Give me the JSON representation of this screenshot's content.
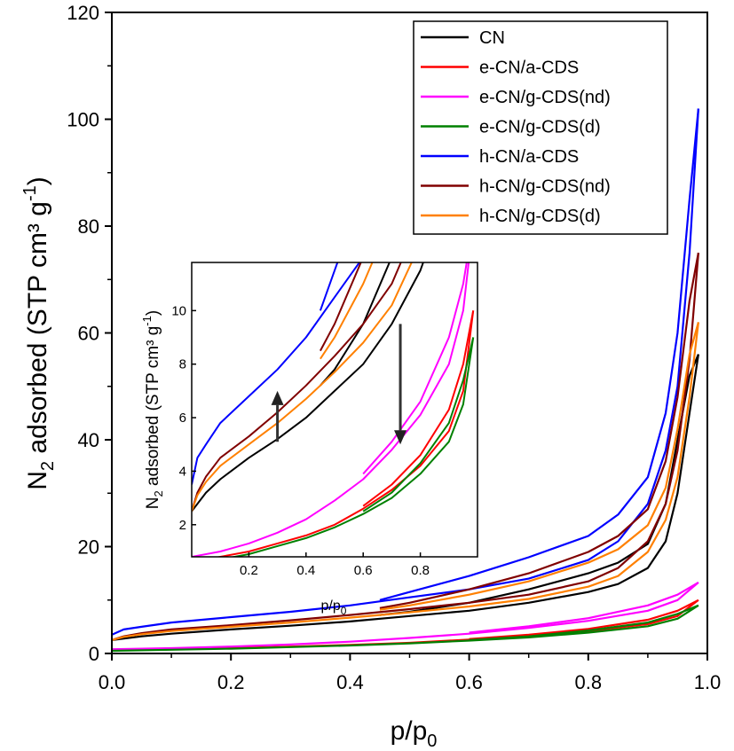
{
  "chart_data": {
    "type": "line",
    "x_title": {
      "base": "p/p",
      "sub": "0"
    },
    "y_title": {
      "prefix": "N",
      "sub": "2",
      "middle": " adsorbed (STP cm³ g",
      "sup": "-1",
      "suffix": ")"
    },
    "xlim": [
      0.0,
      1.0
    ],
    "ylim": [
      0,
      120
    ],
    "x_ticks": [
      "0.0",
      "0.2",
      "0.4",
      "0.6",
      "0.8",
      "1.0"
    ],
    "y_ticks": [
      "0",
      "20",
      "40",
      "60",
      "80",
      "100",
      "120"
    ],
    "legend_position": "top-right",
    "grid": false,
    "series": [
      {
        "name": "CN",
        "color": "#000000",
        "adsorption": [
          [
            0,
            2.5
          ],
          [
            0.05,
            3.2
          ],
          [
            0.1,
            3.7
          ],
          [
            0.2,
            4.5
          ],
          [
            0.3,
            5.2
          ],
          [
            0.4,
            6.0
          ],
          [
            0.5,
            7.0
          ],
          [
            0.6,
            8.0
          ],
          [
            0.7,
            9.5
          ],
          [
            0.8,
            11.5
          ],
          [
            0.85,
            13.0
          ],
          [
            0.9,
            16.0
          ],
          [
            0.93,
            21.0
          ],
          [
            0.95,
            30.0
          ],
          [
            0.97,
            45.0
          ],
          [
            0.985,
            56.0
          ]
        ],
        "desorption": [
          [
            0.985,
            56.0
          ],
          [
            0.97,
            52.0
          ],
          [
            0.95,
            40.0
          ],
          [
            0.93,
            28.0
          ],
          [
            0.9,
            20.5
          ],
          [
            0.85,
            17.0
          ],
          [
            0.8,
            15.0
          ],
          [
            0.7,
            12.0
          ],
          [
            0.6,
            9.5
          ],
          [
            0.5,
            7.8
          ],
          [
            0.45,
            7.2
          ]
        ]
      },
      {
        "name": "e-CN/a-CDS",
        "color": "#ff0000",
        "adsorption": [
          [
            0,
            0.6
          ],
          [
            0.1,
            0.8
          ],
          [
            0.2,
            1.0
          ],
          [
            0.3,
            1.3
          ],
          [
            0.4,
            1.6
          ],
          [
            0.5,
            2.0
          ],
          [
            0.6,
            2.6
          ],
          [
            0.7,
            3.3
          ],
          [
            0.8,
            4.2
          ],
          [
            0.9,
            5.5
          ],
          [
            0.95,
            7.0
          ],
          [
            0.985,
            10.0
          ]
        ],
        "desorption": [
          [
            0.985,
            10.0
          ],
          [
            0.95,
            8.0
          ],
          [
            0.9,
            6.3
          ],
          [
            0.8,
            4.6
          ],
          [
            0.7,
            3.5
          ],
          [
            0.6,
            2.7
          ]
        ]
      },
      {
        "name": "e-CN/g-CDS(nd)",
        "color": "#ff00ff",
        "adsorption": [
          [
            0,
            0.8
          ],
          [
            0.1,
            1.0
          ],
          [
            0.2,
            1.3
          ],
          [
            0.3,
            1.7
          ],
          [
            0.4,
            2.2
          ],
          [
            0.5,
            2.9
          ],
          [
            0.6,
            3.7
          ],
          [
            0.7,
            4.8
          ],
          [
            0.8,
            6.1
          ],
          [
            0.9,
            8.0
          ],
          [
            0.95,
            10.0
          ],
          [
            0.985,
            13.3
          ]
        ],
        "desorption": [
          [
            0.985,
            13.3
          ],
          [
            0.95,
            11.0
          ],
          [
            0.9,
            9.0
          ],
          [
            0.8,
            6.6
          ],
          [
            0.7,
            5.1
          ],
          [
            0.6,
            3.9
          ]
        ]
      },
      {
        "name": "e-CN/g-CDS(d)",
        "color": "#008000",
        "adsorption": [
          [
            0,
            0.5
          ],
          [
            0.1,
            0.7
          ],
          [
            0.2,
            0.9
          ],
          [
            0.3,
            1.2
          ],
          [
            0.4,
            1.5
          ],
          [
            0.5,
            1.9
          ],
          [
            0.6,
            2.4
          ],
          [
            0.7,
            3.0
          ],
          [
            0.8,
            3.9
          ],
          [
            0.9,
            5.1
          ],
          [
            0.95,
            6.5
          ],
          [
            0.985,
            9.0
          ]
        ],
        "desorption": [
          [
            0.985,
            9.0
          ],
          [
            0.95,
            7.4
          ],
          [
            0.9,
            5.8
          ],
          [
            0.8,
            4.3
          ],
          [
            0.7,
            3.2
          ],
          [
            0.6,
            2.5
          ]
        ]
      },
      {
        "name": "h-CN/a-CDS",
        "color": "#0000ff",
        "adsorption": [
          [
            0,
            3.5
          ],
          [
            0.02,
            4.5
          ],
          [
            0.05,
            5.0
          ],
          [
            0.1,
            5.8
          ],
          [
            0.2,
            6.8
          ],
          [
            0.3,
            7.8
          ],
          [
            0.4,
            9.0
          ],
          [
            0.5,
            10.5
          ],
          [
            0.6,
            12.0
          ],
          [
            0.7,
            14.0
          ],
          [
            0.8,
            17.5
          ],
          [
            0.85,
            21.0
          ],
          [
            0.9,
            28.0
          ],
          [
            0.93,
            38.0
          ],
          [
            0.95,
            50.0
          ],
          [
            0.97,
            75.0
          ],
          [
            0.985,
            102.0
          ]
        ],
        "desorption": [
          [
            0.985,
            102.0
          ],
          [
            0.97,
            85.0
          ],
          [
            0.95,
            60.0
          ],
          [
            0.93,
            45.0
          ],
          [
            0.9,
            33.0
          ],
          [
            0.85,
            26.0
          ],
          [
            0.8,
            22.0
          ],
          [
            0.7,
            18.0
          ],
          [
            0.6,
            14.5
          ],
          [
            0.5,
            11.5
          ],
          [
            0.45,
            10.0
          ]
        ]
      },
      {
        "name": "h-CN/g-CDS(nd)",
        "color": "#800000",
        "adsorption": [
          [
            0,
            2.5
          ],
          [
            0.02,
            3.2
          ],
          [
            0.05,
            3.8
          ],
          [
            0.1,
            4.5
          ],
          [
            0.2,
            5.3
          ],
          [
            0.3,
            6.2
          ],
          [
            0.4,
            7.2
          ],
          [
            0.5,
            8.3
          ],
          [
            0.6,
            9.5
          ],
          [
            0.7,
            11.0
          ],
          [
            0.8,
            13.5
          ],
          [
            0.85,
            16.0
          ],
          [
            0.9,
            21.0
          ],
          [
            0.93,
            28.0
          ],
          [
            0.95,
            38.0
          ],
          [
            0.97,
            55.0
          ],
          [
            0.985,
            75.0
          ]
        ],
        "desorption": [
          [
            0.985,
            75.0
          ],
          [
            0.97,
            66.0
          ],
          [
            0.95,
            48.0
          ],
          [
            0.93,
            36.0
          ],
          [
            0.9,
            27.0
          ],
          [
            0.85,
            22.0
          ],
          [
            0.8,
            19.0
          ],
          [
            0.7,
            15.0
          ],
          [
            0.6,
            12.0
          ],
          [
            0.5,
            9.5
          ],
          [
            0.45,
            8.5
          ]
        ]
      },
      {
        "name": "h-CN/g-CDS(d)",
        "color": "#ff8000",
        "adsorption": [
          [
            0,
            2.5
          ],
          [
            0.02,
            3.1
          ],
          [
            0.05,
            3.6
          ],
          [
            0.1,
            4.2
          ],
          [
            0.2,
            5.0
          ],
          [
            0.3,
            5.8
          ],
          [
            0.4,
            6.7
          ],
          [
            0.5,
            7.7
          ],
          [
            0.6,
            8.8
          ],
          [
            0.7,
            10.2
          ],
          [
            0.8,
            12.5
          ],
          [
            0.85,
            14.5
          ],
          [
            0.9,
            19.0
          ],
          [
            0.93,
            25.0
          ],
          [
            0.95,
            33.0
          ],
          [
            0.97,
            48.0
          ],
          [
            0.985,
            62.0
          ]
        ],
        "desorption": [
          [
            0.985,
            62.0
          ],
          [
            0.97,
            56.0
          ],
          [
            0.95,
            42.0
          ],
          [
            0.93,
            31.0
          ],
          [
            0.9,
            24.0
          ],
          [
            0.85,
            19.5
          ],
          [
            0.8,
            17.0
          ],
          [
            0.7,
            13.5
          ],
          [
            0.6,
            11.0
          ],
          [
            0.5,
            9.0
          ],
          [
            0.45,
            8.2
          ]
        ]
      }
    ],
    "inset": {
      "x_title": {
        "base": "p/p",
        "sub": "0"
      },
      "y_title": {
        "prefix": "N",
        "sub": "2",
        "middle": " adsorbed (STP cm³ g",
        "sup": "-1",
        "suffix": ")"
      },
      "xlim": [
        0.0,
        1.0
      ],
      "ylim": [
        0.8,
        11.8
      ],
      "x_ticks": [
        "0.2",
        "0.4",
        "0.6",
        "0.8"
      ],
      "y_ticks": [
        "2",
        "4",
        "6",
        "8",
        "10"
      ],
      "arrows": [
        {
          "direction": "up",
          "x": 0.3,
          "y_from": 5.1,
          "y_to": 7.0
        },
        {
          "direction": "down",
          "x": 0.73,
          "y_from": 9.5,
          "y_to": 5.0
        }
      ]
    }
  }
}
